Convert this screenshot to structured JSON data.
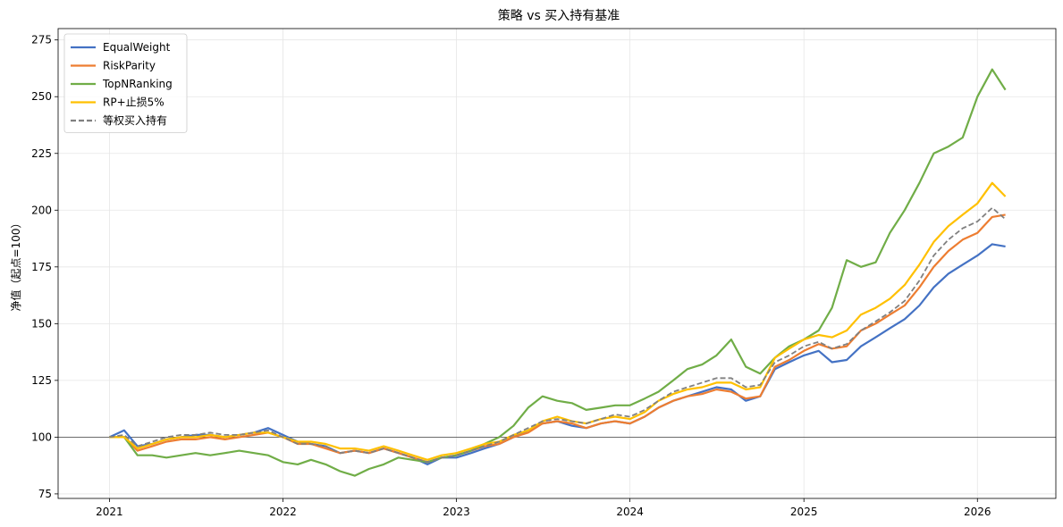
{
  "chart_data": {
    "type": "line",
    "title": "策略 vs 买入持有基准",
    "xlabel": "",
    "ylabel": "净值（起点=100）",
    "x_type": "date",
    "xlim": [
      "2020-09-15",
      "2026-06-15"
    ],
    "ylim": [
      73,
      280
    ],
    "yticks": [
      75,
      100,
      125,
      150,
      175,
      200,
      225,
      250,
      275
    ],
    "xticks": [
      "2021-01-01",
      "2022-01-01",
      "2023-01-01",
      "2024-01-01",
      "2025-01-01",
      "2026-01-01"
    ],
    "xtick_labels": [
      "2021",
      "2022",
      "2023",
      "2024",
      "2025",
      "2026"
    ],
    "grid": true,
    "legend_position": "top-left",
    "reference_line": {
      "y": 100,
      "color": "#404040"
    },
    "series": [
      {
        "name": "EqualWeight",
        "color": "#4472C4",
        "style": "solid",
        "x": [
          "2021-01-01",
          "2021-02-01",
          "2021-03-01",
          "2021-04-01",
          "2021-05-01",
          "2021-06-01",
          "2021-07-01",
          "2021-08-01",
          "2021-09-01",
          "2021-10-01",
          "2021-11-01",
          "2021-12-01",
          "2022-01-01",
          "2022-02-01",
          "2022-03-01",
          "2022-04-01",
          "2022-05-01",
          "2022-06-01",
          "2022-07-01",
          "2022-08-01",
          "2022-09-01",
          "2022-10-01",
          "2022-11-01",
          "2022-12-01",
          "2023-01-01",
          "2023-02-01",
          "2023-03-01",
          "2023-04-01",
          "2023-05-01",
          "2023-06-01",
          "2023-07-01",
          "2023-08-01",
          "2023-09-01",
          "2023-10-01",
          "2023-11-01",
          "2023-12-01",
          "2024-01-01",
          "2024-02-01",
          "2024-03-01",
          "2024-04-01",
          "2024-05-01",
          "2024-06-01",
          "2024-07-01",
          "2024-08-01",
          "2024-09-01",
          "2024-10-01",
          "2024-11-01",
          "2024-12-01",
          "2025-01-01",
          "2025-02-01",
          "2025-03-01",
          "2025-04-01",
          "2025-05-01",
          "2025-06-01",
          "2025-07-01",
          "2025-08-01",
          "2025-09-01",
          "2025-10-01",
          "2025-11-01",
          "2025-12-01",
          "2026-01-01",
          "2026-02-01",
          "2026-03-01"
        ],
        "y": [
          100,
          103,
          96,
          97,
          99,
          100,
          101,
          101,
          100,
          101,
          102,
          104,
          101,
          98,
          97,
          96,
          93,
          94,
          93,
          95,
          93,
          91,
          88,
          91,
          91,
          93,
          95,
          97,
          100,
          103,
          106,
          107,
          105,
          104,
          106,
          107,
          106,
          109,
          113,
          116,
          118,
          120,
          122,
          121,
          116,
          118,
          130,
          133,
          136,
          138,
          133,
          134,
          140,
          144,
          148,
          152,
          158,
          166,
          172,
          176,
          180,
          185,
          184
        ]
      },
      {
        "name": "RiskParity",
        "color": "#ED7D31",
        "style": "solid",
        "x": [
          "2021-01-01",
          "2021-02-01",
          "2021-03-01",
          "2021-04-01",
          "2021-05-01",
          "2021-06-01",
          "2021-07-01",
          "2021-08-01",
          "2021-09-01",
          "2021-10-01",
          "2021-11-01",
          "2021-12-01",
          "2022-01-01",
          "2022-02-01",
          "2022-03-01",
          "2022-04-01",
          "2022-05-01",
          "2022-06-01",
          "2022-07-01",
          "2022-08-01",
          "2022-09-01",
          "2022-10-01",
          "2022-11-01",
          "2022-12-01",
          "2023-01-01",
          "2023-02-01",
          "2023-03-01",
          "2023-04-01",
          "2023-05-01",
          "2023-06-01",
          "2023-07-01",
          "2023-08-01",
          "2023-09-01",
          "2023-10-01",
          "2023-11-01",
          "2023-12-01",
          "2024-01-01",
          "2024-02-01",
          "2024-03-01",
          "2024-04-01",
          "2024-05-01",
          "2024-06-01",
          "2024-07-01",
          "2024-08-01",
          "2024-09-01",
          "2024-10-01",
          "2024-11-01",
          "2024-12-01",
          "2025-01-01",
          "2025-02-01",
          "2025-03-01",
          "2025-04-01",
          "2025-05-01",
          "2025-06-01",
          "2025-07-01",
          "2025-08-01",
          "2025-09-01",
          "2025-10-01",
          "2025-11-01",
          "2025-12-01",
          "2026-01-01",
          "2026-02-01",
          "2026-03-01"
        ],
        "y": [
          100,
          100,
          94,
          96,
          98,
          99,
          99,
          100,
          99,
          100,
          101,
          102,
          100,
          97,
          97,
          95,
          93,
          94,
          93,
          95,
          93,
          91,
          89,
          91,
          92,
          94,
          96,
          97,
          100,
          102,
          106,
          107,
          106,
          104,
          106,
          107,
          106,
          109,
          113,
          116,
          118,
          119,
          121,
          120,
          117,
          118,
          131,
          134,
          138,
          141,
          139,
          140,
          147,
          150,
          154,
          158,
          166,
          175,
          182,
          187,
          190,
          197,
          198
        ]
      },
      {
        "name": "TopNRanking",
        "color": "#70AD47",
        "style": "solid",
        "x": [
          "2021-01-01",
          "2021-02-01",
          "2021-03-01",
          "2021-04-01",
          "2021-05-01",
          "2021-06-01",
          "2021-07-01",
          "2021-08-01",
          "2021-09-01",
          "2021-10-01",
          "2021-11-01",
          "2021-12-01",
          "2022-01-01",
          "2022-02-01",
          "2022-03-01",
          "2022-04-01",
          "2022-05-01",
          "2022-06-01",
          "2022-07-01",
          "2022-08-01",
          "2022-09-01",
          "2022-10-01",
          "2022-11-01",
          "2022-12-01",
          "2023-01-01",
          "2023-02-01",
          "2023-03-01",
          "2023-04-01",
          "2023-05-01",
          "2023-06-01",
          "2023-07-01",
          "2023-08-01",
          "2023-09-01",
          "2023-10-01",
          "2023-11-01",
          "2023-12-01",
          "2024-01-01",
          "2024-02-01",
          "2024-03-01",
          "2024-04-01",
          "2024-05-01",
          "2024-06-01",
          "2024-07-01",
          "2024-08-01",
          "2024-09-01",
          "2024-10-01",
          "2024-11-01",
          "2024-12-01",
          "2025-01-01",
          "2025-02-01",
          "2025-03-01",
          "2025-04-01",
          "2025-05-01",
          "2025-06-01",
          "2025-07-01",
          "2025-08-01",
          "2025-09-01",
          "2025-10-01",
          "2025-11-01",
          "2025-12-01",
          "2026-01-01",
          "2026-02-01",
          "2026-03-01"
        ],
        "y": [
          100,
          100,
          92,
          92,
          91,
          92,
          93,
          92,
          93,
          94,
          93,
          92,
          89,
          88,
          90,
          88,
          85,
          83,
          86,
          88,
          91,
          90,
          89,
          91,
          92,
          94,
          97,
          100,
          105,
          113,
          118,
          116,
          115,
          112,
          113,
          114,
          114,
          117,
          120,
          125,
          130,
          132,
          136,
          143,
          131,
          128,
          135,
          140,
          143,
          147,
          157,
          178,
          175,
          177,
          190,
          200,
          212,
          225,
          228,
          232,
          250,
          262,
          253
        ]
      },
      {
        "name": "RP+止损5%",
        "color": "#FFC000",
        "style": "solid",
        "x": [
          "2021-01-01",
          "2021-02-01",
          "2021-03-01",
          "2021-04-01",
          "2021-05-01",
          "2021-06-01",
          "2021-07-01",
          "2021-08-01",
          "2021-09-01",
          "2021-10-01",
          "2021-11-01",
          "2021-12-01",
          "2022-01-01",
          "2022-02-01",
          "2022-03-01",
          "2022-04-01",
          "2022-05-01",
          "2022-06-01",
          "2022-07-01",
          "2022-08-01",
          "2022-09-01",
          "2022-10-01",
          "2022-11-01",
          "2022-12-01",
          "2023-01-01",
          "2023-02-01",
          "2023-03-01",
          "2023-04-01",
          "2023-05-01",
          "2023-06-01",
          "2023-07-01",
          "2023-08-01",
          "2023-09-01",
          "2023-10-01",
          "2023-11-01",
          "2023-12-01",
          "2024-01-01",
          "2024-02-01",
          "2024-03-01",
          "2024-04-01",
          "2024-05-01",
          "2024-06-01",
          "2024-07-01",
          "2024-08-01",
          "2024-09-01",
          "2024-10-01",
          "2024-11-01",
          "2024-12-01",
          "2025-01-01",
          "2025-02-01",
          "2025-03-01",
          "2025-04-01",
          "2025-05-01",
          "2025-06-01",
          "2025-07-01",
          "2025-08-01",
          "2025-09-01",
          "2025-10-01",
          "2025-11-01",
          "2025-12-01",
          "2026-01-01",
          "2026-02-01",
          "2026-03-01"
        ],
        "y": [
          100,
          100,
          95,
          97,
          99,
          100,
          100,
          101,
          100,
          101,
          102,
          102,
          100,
          98,
          98,
          97,
          95,
          95,
          94,
          96,
          94,
          92,
          90,
          92,
          93,
          95,
          97,
          98,
          101,
          103,
          107,
          109,
          107,
          106,
          108,
          109,
          108,
          111,
          116,
          119,
          121,
          122,
          124,
          124,
          121,
          122,
          135,
          139,
          143,
          145,
          144,
          147,
          154,
          157,
          161,
          167,
          176,
          186,
          193,
          198,
          203,
          212,
          206
        ]
      },
      {
        "name": "等权买入持有",
        "color": "#808080",
        "style": "dashed",
        "x": [
          "2021-01-01",
          "2021-02-01",
          "2021-03-01",
          "2021-04-01",
          "2021-05-01",
          "2021-06-01",
          "2021-07-01",
          "2021-08-01",
          "2021-09-01",
          "2021-10-01",
          "2021-11-01",
          "2021-12-01",
          "2022-01-01",
          "2022-02-01",
          "2022-03-01",
          "2022-04-01",
          "2022-05-01",
          "2022-06-01",
          "2022-07-01",
          "2022-08-01",
          "2022-09-01",
          "2022-10-01",
          "2022-11-01",
          "2022-12-01",
          "2023-01-01",
          "2023-02-01",
          "2023-03-01",
          "2023-04-01",
          "2023-05-01",
          "2023-06-01",
          "2023-07-01",
          "2023-08-01",
          "2023-09-01",
          "2023-10-01",
          "2023-11-01",
          "2023-12-01",
          "2024-01-01",
          "2024-02-01",
          "2024-03-01",
          "2024-04-01",
          "2024-05-01",
          "2024-06-01",
          "2024-07-01",
          "2024-08-01",
          "2024-09-01",
          "2024-10-01",
          "2024-11-01",
          "2024-12-01",
          "2025-01-01",
          "2025-02-01",
          "2025-03-01",
          "2025-04-01",
          "2025-05-01",
          "2025-06-01",
          "2025-07-01",
          "2025-08-01",
          "2025-09-01",
          "2025-10-01",
          "2025-11-01",
          "2025-12-01",
          "2026-01-01",
          "2026-02-01",
          "2026-03-01"
        ],
        "y": [
          100,
          101,
          96,
          98,
          100,
          101,
          101,
          102,
          101,
          101,
          102,
          103,
          100,
          97,
          97,
          96,
          93,
          94,
          93,
          95,
          93,
          91,
          89,
          91,
          92,
          94,
          96,
          98,
          101,
          104,
          107,
          108,
          107,
          106,
          108,
          110,
          109,
          112,
          116,
          120,
          122,
          124,
          126,
          126,
          122,
          123,
          133,
          136,
          140,
          142,
          139,
          141,
          147,
          151,
          155,
          160,
          169,
          180,
          187,
          192,
          195,
          201,
          196
        ]
      }
    ]
  }
}
